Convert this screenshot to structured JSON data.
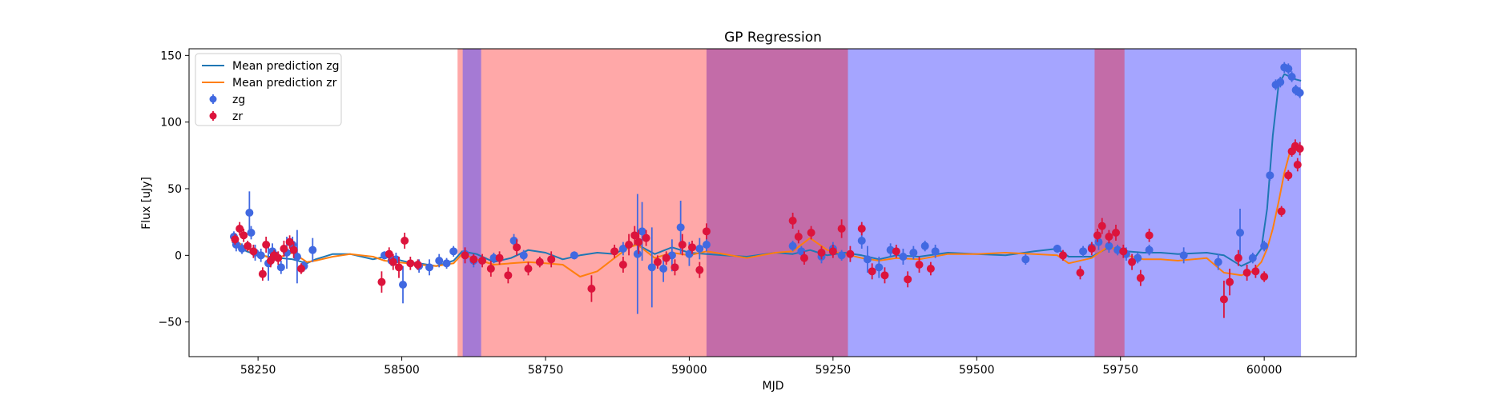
{
  "chart_data": {
    "type": "scatter",
    "title": "GP Regression",
    "xlabel": "MJD",
    "ylabel": "Flux [uJy]",
    "xlim": [
      58130,
      60160
    ],
    "ylim": [
      -76,
      155
    ],
    "x_ticks": [
      58250,
      58500,
      58750,
      59000,
      59250,
      59500,
      59750,
      60000
    ],
    "x_tick_labels": [
      "58250",
      "58500",
      "58750",
      "59000",
      "59250",
      "59500",
      "59750",
      "60000"
    ],
    "y_ticks": [
      -50,
      0,
      50,
      100,
      150
    ],
    "y_tick_labels": [
      "−50",
      "0",
      "50",
      "100",
      "150"
    ],
    "grid": false,
    "legend_position": "upper-left",
    "legend": [
      {
        "label": "Mean prediction zg",
        "kind": "line",
        "color": "#1f77b4"
      },
      {
        "label": "Mean prediction zr",
        "kind": "line",
        "color": "#ff7f0e"
      },
      {
        "label": "zg",
        "kind": "errorbar-marker",
        "color": "#4169e1"
      },
      {
        "label": "zr",
        "kind": "errorbar-marker",
        "color": "#dc143c"
      }
    ],
    "shaded_regions": [
      {
        "x": [
          58597,
          59030
        ],
        "color": "#ff0000",
        "opacity": 0.34
      },
      {
        "x": [
          58606,
          58638
        ],
        "color": "#4b4bff",
        "opacity": 0.5
      },
      {
        "x": [
          59030,
          59276
        ],
        "color": "#4b4bff",
        "opacity": 0.5
      },
      {
        "x": [
          59030,
          59276
        ],
        "color": "#ff0000",
        "opacity": 0.34
      },
      {
        "x": [
          59276,
          60064
        ],
        "color": "#4b4bff",
        "opacity": 0.5
      },
      {
        "x": [
          59705,
          59757
        ],
        "color": "#ff0000",
        "opacity": 0.34
      }
    ],
    "series": [
      {
        "name": "Mean prediction zg",
        "kind": "line",
        "color": "#1f77b4",
        "x": [
          58205,
          58215,
          58230,
          58250,
          58270,
          58290,
          58310,
          58335,
          58350,
          58380,
          58410,
          58450,
          58470,
          58490,
          58510,
          58530,
          58560,
          58590,
          58605,
          58630,
          58660,
          58690,
          58720,
          58750,
          58780,
          58810,
          58840,
          58870,
          58895,
          58910,
          58940,
          58970,
          59000,
          59030,
          59060,
          59100,
          59150,
          59180,
          59210,
          59240,
          59270,
          59300,
          59330,
          59360,
          59400,
          59450,
          59500,
          59550,
          59600,
          59640,
          59660,
          59700,
          59730,
          59760,
          59790,
          59820,
          59850,
          59900,
          59930,
          59960,
          59980,
          59995,
          60005,
          60015,
          60025,
          60035,
          60045,
          60055,
          60064
        ],
        "y": [
          10,
          7,
          3,
          0,
          -1,
          -2,
          -3,
          -6,
          -3,
          1,
          1,
          -3,
          -1,
          -3,
          -5,
          -6,
          -8,
          -4,
          3,
          1,
          -5,
          -2,
          4,
          2,
          -3,
          0,
          2,
          1,
          7,
          8,
          1,
          6,
          2,
          1,
          0,
          -1,
          2,
          1,
          4,
          0,
          2,
          0,
          -3,
          0,
          -1,
          2,
          1,
          0,
          3,
          5,
          -1,
          -1,
          6,
          3,
          2,
          2,
          1,
          2,
          0,
          -8,
          -4,
          5,
          35,
          90,
          128,
          136,
          134,
          132,
          131
        ]
      },
      {
        "name": "Mean prediction zr",
        "kind": "line",
        "color": "#ff7f0e",
        "x": [
          58205,
          58215,
          58230,
          58250,
          58270,
          58290,
          58310,
          58335,
          58350,
          58380,
          58410,
          58450,
          58470,
          58490,
          58510,
          58530,
          58560,
          58590,
          58605,
          58630,
          58660,
          58690,
          58720,
          58750,
          58780,
          58810,
          58840,
          58870,
          58895,
          58910,
          58940,
          58970,
          59000,
          59030,
          59060,
          59100,
          59150,
          59180,
          59210,
          59240,
          59270,
          59300,
          59330,
          59360,
          59400,
          59450,
          59500,
          59550,
          59600,
          59640,
          59660,
          59700,
          59730,
          59760,
          59790,
          59820,
          59850,
          59900,
          59930,
          59960,
          59980,
          59995,
          60005,
          60015,
          60025,
          60035,
          60045,
          60055,
          60064
        ],
        "y": [
          13,
          10,
          5,
          2,
          -2,
          -1,
          2,
          -5,
          -4,
          -1,
          1,
          -1,
          -4,
          -5,
          -6,
          -7,
          -8,
          -6,
          1,
          -3,
          -7,
          -6,
          -5,
          -6,
          -7,
          -16,
          -12,
          -2,
          6,
          8,
          -2,
          2,
          0,
          3,
          1,
          -2,
          2,
          3,
          13,
          4,
          1,
          -2,
          -4,
          -2,
          -3,
          1,
          1,
          2,
          1,
          0,
          -6,
          -2,
          7,
          0,
          -3,
          -3,
          -4,
          -2,
          -13,
          -15,
          -12,
          -5,
          5,
          20,
          40,
          62,
          78,
          79,
          79
        ]
      },
      {
        "name": "zg",
        "kind": "errorbar",
        "color": "#4169e1",
        "x": [
          58208,
          58212,
          58222,
          58235,
          58238,
          58245,
          58255,
          58268,
          58275,
          58280,
          58290,
          58300,
          58310,
          58318,
          58330,
          58345,
          58470,
          58482,
          58490,
          58502,
          58530,
          58548,
          58565,
          58578,
          58590,
          58610,
          58625,
          58660,
          58695,
          58712,
          58800,
          58885,
          58910,
          58918,
          58935,
          58955,
          58970,
          58985,
          59000,
          59018,
          59030,
          59180,
          59195,
          59230,
          59250,
          59265,
          59300,
          59310,
          59330,
          59350,
          59372,
          59390,
          59410,
          59428,
          59585,
          59640,
          59685,
          59700,
          59712,
          59730,
          59745,
          59760,
          59780,
          59800,
          59860,
          59920,
          59958,
          59980,
          60000,
          60010,
          60020,
          60028,
          60035,
          60042,
          60048,
          60055,
          60062
        ],
        "y": [
          14,
          8,
          5,
          32,
          17,
          2,
          0,
          -6,
          3,
          0,
          -9,
          2,
          8,
          -1,
          -8,
          4,
          0,
          -4,
          -3,
          -22,
          -8,
          -9,
          -4,
          -6,
          3,
          1,
          -4,
          -2,
          11,
          0,
          0,
          5,
          1,
          18,
          -9,
          -10,
          0,
          21,
          1,
          5,
          8,
          7,
          3,
          -1,
          5,
          0,
          11,
          -3,
          -9,
          4,
          -1,
          2,
          7,
          3,
          -3,
          5,
          3,
          6,
          10,
          7,
          4,
          1,
          -2,
          4,
          0,
          -5,
          17,
          -2,
          7,
          60,
          128,
          130,
          141,
          140,
          134,
          124,
          122
        ],
        "err": [
          4,
          5,
          4,
          16,
          5,
          6,
          5,
          13,
          6,
          4,
          5,
          12,
          6,
          20,
          4,
          9,
          3,
          4,
          5,
          14,
          5,
          6,
          5,
          4,
          4,
          4,
          5,
          4,
          5,
          4,
          3,
          5,
          45,
          22,
          30,
          10,
          12,
          20,
          9,
          8,
          5,
          4,
          4,
          5,
          5,
          4,
          6,
          10,
          8,
          5,
          6,
          5,
          4,
          5,
          4,
          3,
          4,
          4,
          6,
          5,
          4,
          5,
          4,
          4,
          6,
          6,
          18,
          4,
          4,
          4,
          4,
          4,
          4,
          4,
          4,
          4,
          4
        ]
      },
      {
        "name": "zr",
        "kind": "errorbar",
        "color": "#dc143c",
        "x": [
          58210,
          58218,
          58225,
          58232,
          58242,
          58258,
          58264,
          58272,
          58278,
          58285,
          58295,
          58305,
          58312,
          58325,
          58465,
          58478,
          58485,
          58495,
          58505,
          58515,
          58528,
          58610,
          58625,
          58640,
          58655,
          58670,
          58685,
          58700,
          58720,
          58740,
          58760,
          58830,
          58870,
          58885,
          58895,
          58905,
          58912,
          58925,
          58945,
          58960,
          58975,
          58988,
          59005,
          59018,
          59030,
          59180,
          59190,
          59200,
          59212,
          59230,
          59250,
          59265,
          59280,
          59300,
          59318,
          59340,
          59360,
          59380,
          59400,
          59420,
          59650,
          59680,
          59700,
          59710,
          59718,
          59730,
          59742,
          59755,
          59770,
          59785,
          59800,
          59930,
          59940,
          59955,
          59970,
          59985,
          60000,
          60030,
          60042,
          60048,
          60054,
          60058,
          60062
        ],
        "y": [
          12,
          20,
          15,
          7,
          3,
          -14,
          8,
          -4,
          0,
          -2,
          5,
          10,
          4,
          -10,
          -20,
          1,
          -5,
          -9,
          11,
          -6,
          -7,
          0,
          -3,
          -4,
          -10,
          -2,
          -15,
          6,
          -10,
          -5,
          -3,
          -25,
          3,
          -7,
          8,
          15,
          10,
          13,
          -5,
          -2,
          -9,
          8,
          6,
          -11,
          18,
          26,
          14,
          -2,
          17,
          2,
          3,
          20,
          1,
          20,
          -12,
          -15,
          3,
          -18,
          -7,
          -10,
          0,
          -13,
          5,
          15,
          22,
          14,
          17,
          3,
          -5,
          -17,
          15,
          -33,
          -20,
          -2,
          -13,
          -12,
          -16,
          33,
          60,
          78,
          82,
          68,
          80
        ],
        "err": [
          4,
          5,
          5,
          4,
          5,
          5,
          6,
          5,
          4,
          5,
          6,
          5,
          6,
          4,
          8,
          5,
          6,
          8,
          6,
          5,
          4,
          6,
          4,
          5,
          6,
          5,
          6,
          6,
          5,
          4,
          6,
          10,
          5,
          6,
          8,
          7,
          9,
          6,
          5,
          5,
          6,
          8,
          5,
          6,
          6,
          6,
          5,
          5,
          5,
          5,
          5,
          7,
          6,
          5,
          6,
          6,
          5,
          6,
          6,
          5,
          4,
          5,
          5,
          5,
          6,
          5,
          6,
          5,
          6,
          6,
          5,
          14,
          10,
          6,
          6,
          5,
          4,
          4,
          4,
          4,
          5,
          5,
          5
        ]
      }
    ]
  }
}
